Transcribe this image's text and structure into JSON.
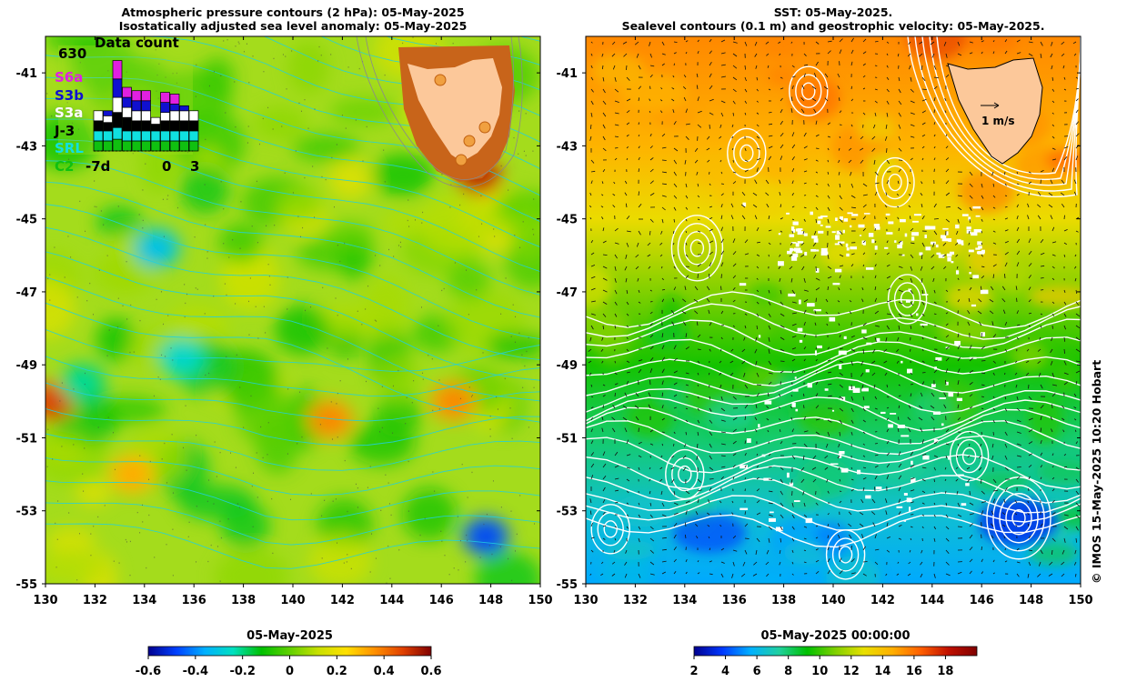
{
  "left_panel": {
    "title_line1": "Atmospheric pressure contours (2 hPa): 05-May-2025",
    "title_line2": "Isostatically adjusted sea level anomaly: 05-May-2025",
    "colorbar_title": "05-May-2025"
  },
  "right_panel": {
    "title_line1": "SST: 05-May-2025.",
    "title_line2": "Sealevel contours (0.1 m) and geostrophic velocity: 05-May-2025.",
    "colorbar_title": "05-May-2025 00:00:00",
    "velocity_scale_label": "1 m/s"
  },
  "credit": "© IMOS 15-May-2025 10:20 Hobart",
  "inset": {
    "title": "Data count",
    "max_label": "630",
    "x_labels": [
      "-7d",
      "0",
      "3"
    ],
    "missions": [
      {
        "name": "S6a",
        "color": "#e020e0"
      },
      {
        "name": "S3b",
        "color": "#1010d0"
      },
      {
        "name": "S3a",
        "color": "#ffffff"
      },
      {
        "name": "J-3",
        "color": "#000000"
      },
      {
        "name": "SRL",
        "color": "#10e0e0"
      },
      {
        "name": "C2",
        "color": "#10c010"
      }
    ]
  },
  "colors": {
    "land": "#fcc89a",
    "ssla_cmap": [
      "#00008f",
      "#0040ff",
      "#00b0ff",
      "#00e0c0",
      "#00c000",
      "#60d000",
      "#c8e000",
      "#ffe000",
      "#ff9000",
      "#e04000",
      "#800000"
    ],
    "sst_cmap": [
      "#00008f",
      "#0038ff",
      "#00b0ff",
      "#20d0a0",
      "#00c000",
      "#80d000",
      "#e8e000",
      "#ffb000",
      "#ff6000",
      "#c01000",
      "#800000"
    ]
  },
  "chart_data": [
    {
      "type": "heatmap",
      "name": "Isostatically adjusted sea level anomaly",
      "xlabel": "",
      "ylabel": "",
      "xlim": [
        130,
        150
      ],
      "ylim": [
        -55,
        -40
      ],
      "x_ticks": [
        "130",
        "132",
        "134",
        "136",
        "138",
        "140",
        "142",
        "144",
        "146",
        "148",
        "150"
      ],
      "y_ticks": [
        "-41",
        "-43",
        "-45",
        "-47",
        "-49",
        "-51",
        "-53",
        "-55"
      ],
      "colorbar": {
        "range": [
          -0.6,
          0.6
        ],
        "ticks": [
          "-0.6",
          "-0.4",
          "-0.2",
          "0",
          "0.2",
          "0.4",
          "0.6"
        ]
      },
      "approx_background_value": 0.05,
      "features": [
        {
          "lon": 130.2,
          "lat": -50.0,
          "value": 0.45
        },
        {
          "lon": 141.5,
          "lat": -50.5,
          "value": 0.35
        },
        {
          "lon": 146.5,
          "lat": -50.0,
          "value": 0.35
        },
        {
          "lon": 133.5,
          "lat": -52.0,
          "value": 0.3
        },
        {
          "lon": 134.5,
          "lat": -45.8,
          "value": -0.3
        },
        {
          "lon": 135.5,
          "lat": -48.8,
          "value": -0.25
        },
        {
          "lon": 147.8,
          "lat": -53.7,
          "value": -0.45
        },
        {
          "lon": 131.5,
          "lat": -49.5,
          "value": -0.2
        },
        {
          "lon": 147.5,
          "lat": -43.8,
          "value": 0.5
        }
      ]
    },
    {
      "type": "heatmap",
      "name": "SST",
      "xlabel": "",
      "ylabel": "",
      "xlim": [
        130,
        150
      ],
      "ylim": [
        -55,
        -40
      ],
      "x_ticks": [
        "130",
        "132",
        "134",
        "136",
        "138",
        "140",
        "142",
        "144",
        "146",
        "148",
        "150"
      ],
      "y_ticks": [
        "-41",
        "-43",
        "-45",
        "-47",
        "-49",
        "-51",
        "-53",
        "-55"
      ],
      "colorbar": {
        "range": [
          2,
          20
        ],
        "ticks": [
          "2",
          "4",
          "6",
          "8",
          "10",
          "12",
          "14",
          "16",
          "18"
        ]
      },
      "lat_profile": [
        {
          "lat": -40,
          "sst": 15.5
        },
        {
          "lat": -43,
          "sst": 14.5
        },
        {
          "lat": -45,
          "sst": 13.0
        },
        {
          "lat": -47,
          "sst": 11.0
        },
        {
          "lat": -49,
          "sst": 9.5
        },
        {
          "lat": -51,
          "sst": 8.0
        },
        {
          "lat": -53,
          "sst": 6.5
        },
        {
          "lat": -55,
          "sst": 5.5
        }
      ]
    },
    {
      "type": "bar",
      "name": "Data count",
      "categories": [
        "-7",
        "-6",
        "-5",
        "-4",
        "-3",
        "-2",
        "-1",
        "0",
        "1",
        "2",
        "3"
      ],
      "ylim": [
        0,
        630
      ],
      "series": [
        {
          "name": "C2",
          "values": [
            60,
            60,
            70,
            60,
            60,
            60,
            60,
            60,
            60,
            60,
            60
          ]
        },
        {
          "name": "SRL",
          "values": [
            60,
            60,
            70,
            60,
            60,
            60,
            60,
            60,
            60,
            60,
            60
          ]
        },
        {
          "name": "J-3",
          "values": [
            60,
            50,
            90,
            80,
            60,
            60,
            40,
            60,
            60,
            60,
            60
          ]
        },
        {
          "name": "S3a",
          "values": [
            60,
            40,
            90,
            60,
            60,
            60,
            40,
            50,
            60,
            60,
            60
          ]
        },
        {
          "name": "S3b",
          "values": [
            0,
            30,
            110,
            60,
            60,
            60,
            0,
            60,
            40,
            30,
            0
          ]
        },
        {
          "name": "S6a",
          "values": [
            0,
            0,
            110,
            60,
            60,
            60,
            0,
            60,
            60,
            0,
            0
          ]
        }
      ]
    }
  ]
}
